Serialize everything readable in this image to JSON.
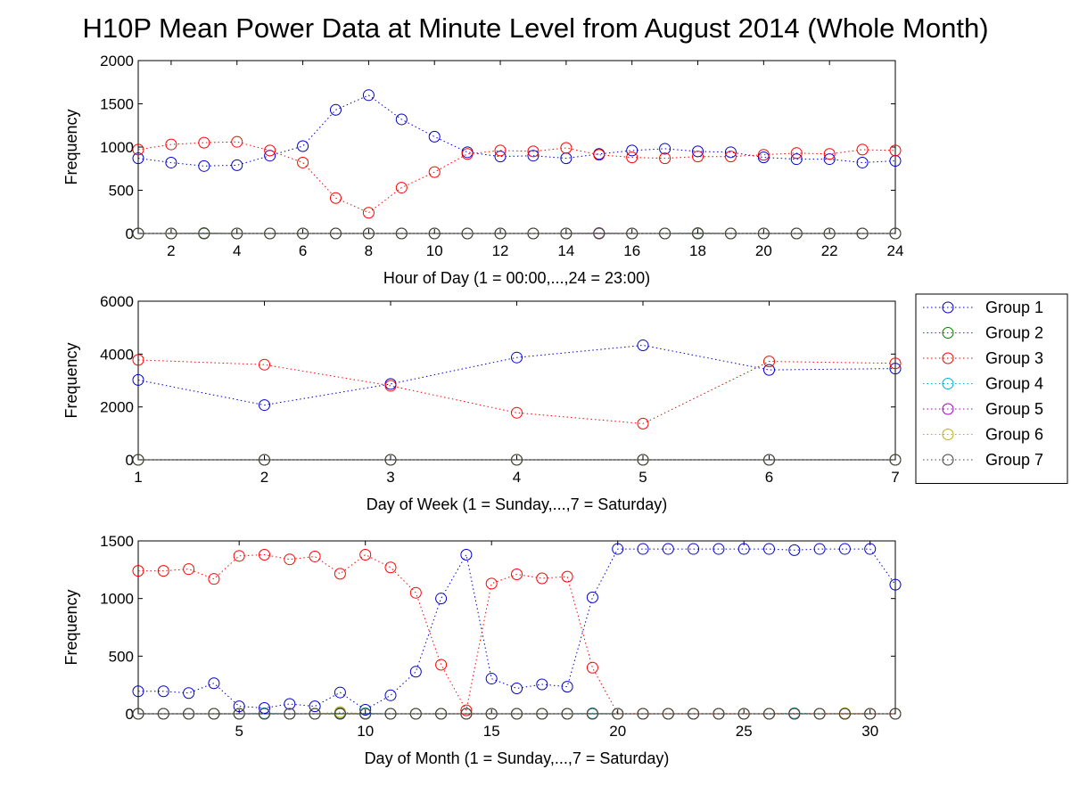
{
  "title": "H10P Mean Power Data at Minute Level from August 2014 (Whole Month)",
  "colors": {
    "Group 1": "#0000cc",
    "Group 2": "#008000",
    "Group 3": "#ff0000",
    "Group 4": "#00b0d0",
    "Group 5": "#a000c0",
    "Group 6": "#c0b000",
    "Group 7": "#404040"
  },
  "legend": {
    "placement": "right",
    "entries": [
      "Group 1",
      "Group 2",
      "Group 3",
      "Group 4",
      "Group 5",
      "Group 6",
      "Group 7"
    ]
  },
  "chart_data": [
    {
      "type": "line",
      "xlabel": "Hour of Day (1 = 00:00,...,24 = 23:00)",
      "ylabel": "Frequency",
      "xlim": [
        1,
        24
      ],
      "ylim": [
        0,
        2000
      ],
      "xticks": [
        2,
        4,
        6,
        8,
        10,
        12,
        14,
        16,
        18,
        20,
        22,
        24
      ],
      "yticks": [
        0,
        500,
        1000,
        1500,
        2000
      ],
      "x": [
        1,
        2,
        3,
        4,
        5,
        6,
        7,
        8,
        9,
        10,
        11,
        12,
        13,
        14,
        15,
        16,
        17,
        18,
        19,
        20,
        21,
        22,
        23,
        24
      ],
      "series": [
        {
          "name": "Group 1",
          "values": [
            870,
            820,
            780,
            790,
            900,
            1010,
            1430,
            1600,
            1320,
            1120,
            940,
            890,
            900,
            870,
            920,
            960,
            980,
            950,
            940,
            880,
            860,
            860,
            820,
            840
          ]
        },
        {
          "name": "Group 2",
          "values": [
            0,
            0,
            5,
            0,
            0,
            0,
            0,
            0,
            0,
            0,
            0,
            0,
            0,
            0,
            0,
            0,
            0,
            5,
            0,
            0,
            0,
            0,
            0,
            0
          ]
        },
        {
          "name": "Group 3",
          "values": [
            970,
            1030,
            1050,
            1060,
            960,
            820,
            410,
            240,
            530,
            710,
            920,
            960,
            950,
            990,
            910,
            880,
            870,
            890,
            890,
            910,
            930,
            920,
            970,
            960
          ]
        },
        {
          "name": "Group 4",
          "values": [
            0,
            0,
            0,
            0,
            0,
            0,
            0,
            0,
            0,
            0,
            0,
            0,
            0,
            0,
            0,
            0,
            0,
            0,
            0,
            0,
            0,
            0,
            0,
            0
          ]
        },
        {
          "name": "Group 5",
          "values": [
            0,
            0,
            0,
            0,
            0,
            0,
            0,
            0,
            0,
            0,
            0,
            0,
            0,
            0,
            5,
            0,
            0,
            0,
            0,
            0,
            0,
            0,
            0,
            0
          ]
        },
        {
          "name": "Group 6",
          "values": [
            0,
            0,
            0,
            0,
            0,
            0,
            0,
            0,
            0,
            0,
            0,
            0,
            0,
            0,
            0,
            0,
            0,
            0,
            0,
            0,
            0,
            0,
            0,
            0
          ]
        },
        {
          "name": "Group 7",
          "values": [
            0,
            0,
            0,
            0,
            0,
            0,
            0,
            0,
            0,
            0,
            0,
            0,
            0,
            0,
            0,
            0,
            0,
            0,
            0,
            0,
            0,
            0,
            0,
            0
          ]
        }
      ]
    },
    {
      "type": "line",
      "xlabel": "Day of Week (1 = Sunday,...,7 = Saturday)",
      "ylabel": "Frequency",
      "xlim": [
        1,
        7
      ],
      "ylim": [
        0,
        6000
      ],
      "xticks": [
        1,
        2,
        3,
        4,
        5,
        6,
        7
      ],
      "yticks": [
        0,
        2000,
        4000,
        6000
      ],
      "x": [
        1,
        2,
        3,
        4,
        5,
        6,
        7
      ],
      "series": [
        {
          "name": "Group 1",
          "values": [
            3020,
            2070,
            2870,
            3870,
            4330,
            3400,
            3450
          ]
        },
        {
          "name": "Group 2",
          "values": [
            0,
            0,
            0,
            0,
            0,
            0,
            0
          ]
        },
        {
          "name": "Group 3",
          "values": [
            3780,
            3600,
            2800,
            1780,
            1370,
            3720,
            3650
          ]
        },
        {
          "name": "Group 4",
          "values": [
            0,
            0,
            0,
            0,
            0,
            0,
            0
          ]
        },
        {
          "name": "Group 5",
          "values": [
            0,
            0,
            0,
            0,
            0,
            0,
            0
          ]
        },
        {
          "name": "Group 6",
          "values": [
            0,
            0,
            0,
            0,
            0,
            0,
            0
          ]
        },
        {
          "name": "Group 7",
          "values": [
            0,
            0,
            0,
            0,
            0,
            0,
            0
          ]
        }
      ]
    },
    {
      "type": "line",
      "xlabel": "Day of Month (1 = Sunday,...,7 = Saturday)",
      "ylabel": "Frequency",
      "xlim": [
        1,
        31
      ],
      "ylim": [
        0,
        1500
      ],
      "xticks": [
        5,
        10,
        15,
        20,
        25,
        30
      ],
      "yticks": [
        0,
        500,
        1000,
        1500
      ],
      "x": [
        1,
        2,
        3,
        4,
        5,
        6,
        7,
        8,
        9,
        10,
        11,
        12,
        13,
        14,
        15,
        16,
        17,
        18,
        19,
        20,
        21,
        22,
        23,
        24,
        25,
        26,
        27,
        28,
        29,
        30,
        31
      ],
      "series": [
        {
          "name": "Group 1",
          "values": [
            195,
            195,
            180,
            265,
            65,
            50,
            85,
            65,
            185,
            35,
            160,
            365,
            1000,
            1380,
            305,
            220,
            255,
            235,
            1010,
            1430,
            1430,
            1430,
            1430,
            1430,
            1430,
            1430,
            1420,
            1430,
            1430,
            1430,
            1120
          ]
        },
        {
          "name": "Group 2",
          "values": [
            0,
            0,
            0,
            0,
            0,
            0,
            0,
            0,
            5,
            0,
            0,
            0,
            0,
            0,
            0,
            0,
            0,
            0,
            0,
            0,
            0,
            0,
            0,
            0,
            0,
            0,
            5,
            0,
            0,
            0,
            0
          ]
        },
        {
          "name": "Group 3",
          "values": [
            1240,
            1240,
            1255,
            1170,
            1370,
            1380,
            1340,
            1365,
            1215,
            1380,
            1270,
            1050,
            425,
            30,
            1130,
            1210,
            1175,
            1190,
            400,
            0,
            0,
            0,
            0,
            0,
            0,
            0,
            0,
            0,
            0,
            0,
            0
          ]
        },
        {
          "name": "Group 4",
          "values": [
            0,
            0,
            0,
            0,
            0,
            5,
            0,
            0,
            0,
            5,
            0,
            0,
            0,
            0,
            0,
            0,
            0,
            0,
            5,
            0,
            0,
            0,
            0,
            0,
            0,
            0,
            5,
            0,
            0,
            0,
            0
          ]
        },
        {
          "name": "Group 5",
          "values": [
            0,
            0,
            0,
            0,
            0,
            0,
            0,
            0,
            0,
            0,
            0,
            0,
            0,
            0,
            0,
            0,
            0,
            0,
            0,
            0,
            0,
            0,
            0,
            0,
            0,
            0,
            0,
            0,
            0,
            0,
            0
          ]
        },
        {
          "name": "Group 6",
          "values": [
            0,
            0,
            0,
            0,
            0,
            0,
            0,
            0,
            15,
            0,
            0,
            0,
            0,
            0,
            0,
            0,
            0,
            0,
            0,
            0,
            0,
            0,
            0,
            0,
            0,
            0,
            0,
            0,
            5,
            0,
            0
          ]
        },
        {
          "name": "Group 7",
          "values": [
            0,
            0,
            0,
            0,
            0,
            0,
            0,
            0,
            0,
            0,
            0,
            0,
            0,
            0,
            0,
            0,
            0,
            0,
            0,
            0,
            0,
            0,
            0,
            0,
            0,
            0,
            0,
            0,
            0,
            0,
            0
          ]
        }
      ]
    }
  ]
}
